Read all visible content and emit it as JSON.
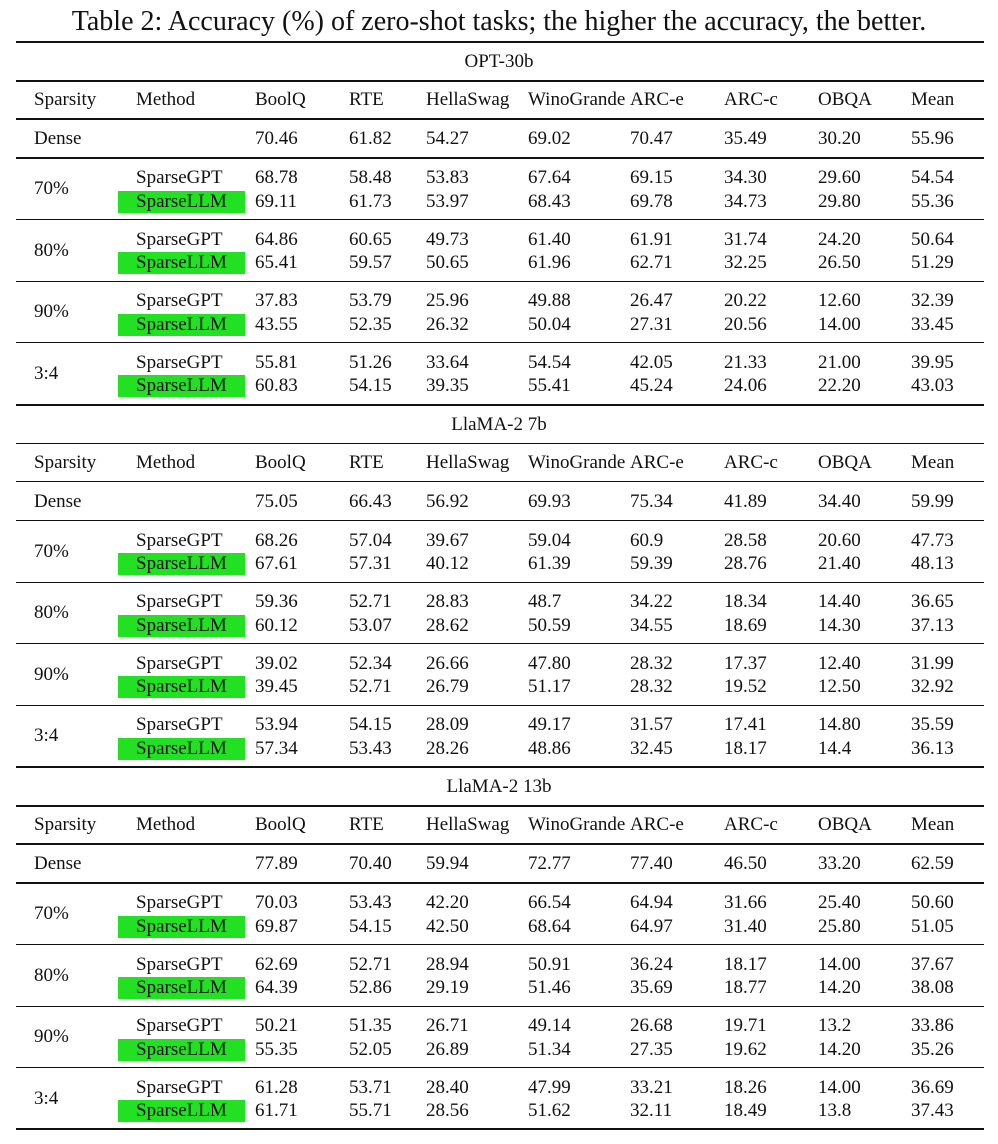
{
  "caption": "Table 2: Accuracy (%) of zero-shot tasks; the higher the accuracy, the better.",
  "sections": [
    {
      "title": "OPT-30b",
      "header": [
        "Sparsity",
        "Method",
        "BoolQ",
        "RTE",
        "HellaSwag",
        "WinoGrande",
        "ARC-e",
        "ARC-c",
        "OBQA",
        "Mean"
      ],
      "dense": {
        "sparsity": "Dense",
        "values": [
          "70.46",
          "61.82",
          "54.27",
          "69.02",
          "70.47",
          "35.49",
          "30.20",
          "55.96"
        ]
      },
      "groups": [
        {
          "sparsity": "70%",
          "rows": [
            {
              "method": "SparseGPT",
              "values": [
                "68.78",
                "58.48",
                "53.83",
                "67.64",
                "69.15",
                "34.30",
                "29.60",
                "54.54"
              ]
            },
            {
              "method": "SparseLLM",
              "values": [
                "69.11",
                "61.73",
                "53.97",
                "68.43",
                "69.78",
                "34.73",
                "29.80",
                "55.36"
              ]
            }
          ]
        },
        {
          "sparsity": "80%",
          "rows": [
            {
              "method": "SparseGPT",
              "values": [
                "64.86",
                "60.65",
                "49.73",
                "61.40",
                "61.91",
                "31.74",
                "24.20",
                "50.64"
              ]
            },
            {
              "method": "SparseLLM",
              "values": [
                "65.41",
                "59.57",
                "50.65",
                "61.96",
                "62.71",
                "32.25",
                "26.50",
                "51.29"
              ]
            }
          ]
        },
        {
          "sparsity": "90%",
          "rows": [
            {
              "method": "SparseGPT",
              "values": [
                "37.83",
                "53.79",
                "25.96",
                "49.88",
                "26.47",
                "20.22",
                "12.60",
                "32.39"
              ]
            },
            {
              "method": "SparseLLM",
              "values": [
                "43.55",
                "52.35",
                "26.32",
                "50.04",
                "27.31",
                "20.56",
                "14.00",
                "33.45"
              ]
            }
          ]
        },
        {
          "sparsity": "3:4",
          "rows": [
            {
              "method": "SparseGPT",
              "values": [
                "55.81",
                "51.26",
                "33.64",
                "54.54",
                "42.05",
                "21.33",
                "21.00",
                "39.95"
              ]
            },
            {
              "method": "SparseLLM",
              "values": [
                "60.83",
                "54.15",
                "39.35",
                "55.41",
                "45.24",
                "24.06",
                "22.20",
                "43.03"
              ]
            }
          ]
        }
      ]
    },
    {
      "title": "LlaMA-2 7b",
      "header": [
        "Sparsity",
        "Method",
        "BoolQ",
        "RTE",
        "HellaSwag",
        "WinoGrande",
        "ARC-e",
        "ARC-c",
        "OBQA",
        "Mean"
      ],
      "dense": {
        "sparsity": "Dense",
        "values": [
          "75.05",
          "66.43",
          "56.92",
          "69.93",
          "75.34",
          "41.89",
          "34.40",
          "59.99"
        ]
      },
      "groups": [
        {
          "sparsity": "70%",
          "rows": [
            {
              "method": "SparseGPT",
              "values": [
                "68.26",
                "57.04",
                "39.67",
                "59.04",
                "60.9",
                "28.58",
                "20.60",
                "47.73"
              ]
            },
            {
              "method": "SparseLLM",
              "values": [
                "67.61",
                "57.31",
                "40.12",
                "61.39",
                "59.39",
                "28.76",
                "21.40",
                "48.13"
              ]
            }
          ]
        },
        {
          "sparsity": "80%",
          "rows": [
            {
              "method": "SparseGPT",
              "values": [
                "59.36",
                "52.71",
                "28.83",
                "48.7",
                "34.22",
                "18.34",
                "14.40",
                "36.65"
              ]
            },
            {
              "method": "SparseLLM",
              "values": [
                "60.12",
                "53.07",
                "28.62",
                "50.59",
                "34.55",
                "18.69",
                "14.30",
                "37.13"
              ]
            }
          ]
        },
        {
          "sparsity": "90%",
          "rows": [
            {
              "method": "SparseGPT",
              "values": [
                "39.02",
                "52.34",
                "26.66",
                "47.80",
                "28.32",
                "17.37",
                "12.40",
                "31.99"
              ]
            },
            {
              "method": "SparseLLM",
              "values": [
                "39.45",
                "52.71",
                "26.79",
                "51.17",
                "28.32",
                "19.52",
                "12.50",
                "32.92"
              ]
            }
          ]
        },
        {
          "sparsity": "3:4",
          "rows": [
            {
              "method": "SparseGPT",
              "values": [
                "53.94",
                "54.15",
                "28.09",
                "49.17",
                "31.57",
                "17.41",
                "14.80",
                "35.59"
              ]
            },
            {
              "method": "SparseLLM",
              "values": [
                "57.34",
                "53.43",
                "28.26",
                "48.86",
                "32.45",
                "18.17",
                "14.4",
                "36.13"
              ]
            }
          ]
        }
      ]
    },
    {
      "title": "LlaMA-2 13b",
      "header": [
        "Sparsity",
        "Method",
        "BoolQ",
        "RTE",
        "HellaSwag",
        "WinoGrande",
        "ARC-e",
        "ARC-c",
        "OBQA",
        "Mean"
      ],
      "dense": {
        "sparsity": "Dense",
        "values": [
          "77.89",
          "70.40",
          "59.94",
          "72.77",
          "77.40",
          "46.50",
          "33.20",
          "62.59"
        ]
      },
      "groups": [
        {
          "sparsity": "70%",
          "rows": [
            {
              "method": "SparseGPT",
              "values": [
                "70.03",
                "53.43",
                "42.20",
                "66.54",
                "64.94",
                "31.66",
                "25.40",
                "50.60"
              ]
            },
            {
              "method": "SparseLLM",
              "values": [
                "69.87",
                "54.15",
                "42.50",
                "68.64",
                "64.97",
                "31.40",
                "25.80",
                "51.05"
              ]
            }
          ]
        },
        {
          "sparsity": "80%",
          "rows": [
            {
              "method": "SparseGPT",
              "values": [
                "62.69",
                "52.71",
                "28.94",
                "50.91",
                "36.24",
                "18.17",
                "14.00",
                "37.67"
              ]
            },
            {
              "method": "SparseLLM",
              "values": [
                "64.39",
                "52.86",
                "29.19",
                "51.46",
                "35.69",
                "18.77",
                "14.20",
                "38.08"
              ]
            }
          ]
        },
        {
          "sparsity": "90%",
          "rows": [
            {
              "method": "SparseGPT",
              "values": [
                "50.21",
                "51.35",
                "26.71",
                "49.14",
                "26.68",
                "19.71",
                "13.2",
                "33.86"
              ]
            },
            {
              "method": "SparseLLM",
              "values": [
                "55.35",
                "52.05",
                "26.89",
                "51.34",
                "27.35",
                "19.62",
                "14.20",
                "35.26"
              ]
            }
          ]
        },
        {
          "sparsity": "3:4",
          "rows": [
            {
              "method": "SparseGPT",
              "values": [
                "61.28",
                "53.71",
                "28.40",
                "47.99",
                "33.21",
                "18.26",
                "14.00",
                "36.69"
              ]
            },
            {
              "method": "SparseLLM",
              "values": [
                "61.71",
                "55.71",
                "28.56",
                "51.62",
                "32.11",
                "18.49",
                "13.8",
                "37.43"
              ]
            }
          ]
        }
      ]
    }
  ]
}
